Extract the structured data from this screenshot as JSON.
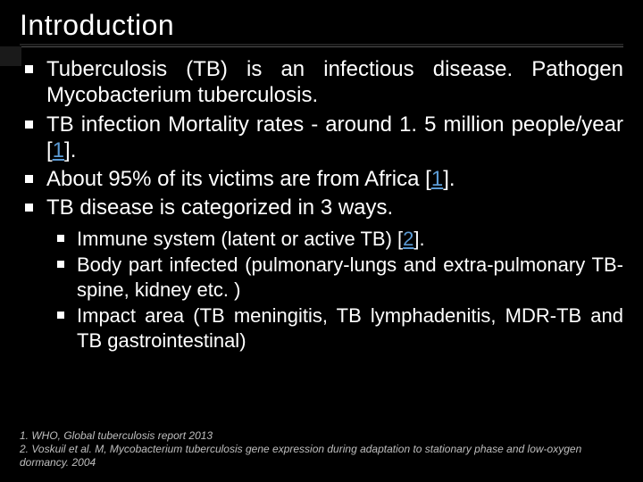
{
  "colors": {
    "background": "#000000",
    "text": "#ffffff",
    "link": "#5b9bd5",
    "footnote": "#bfbfbf",
    "bullet": "#ffffff"
  },
  "typography": {
    "title_fontsize": 32,
    "bullet_fontsize": 24,
    "sub_bullet_fontsize": 22,
    "footnote_fontsize": 12,
    "font_family": "Arial"
  },
  "title": "Introduction",
  "bullets": [
    {
      "pre": "Tuberculosis (TB) is an infectious disease. Pathogen Mycobacterium tuberculosis.",
      "ref": "",
      "post": ""
    },
    {
      "pre": "TB infection Mortality rates - around 1. 5 million people/year [",
      "ref": "1",
      "post": "]."
    },
    {
      "pre": "About 95% of its victims are from Africa [",
      "ref": "1",
      "post": "]."
    },
    {
      "pre": "TB disease is categorized in 3 ways.",
      "ref": "",
      "post": ""
    }
  ],
  "sub_bullets": [
    {
      "pre": "Immune system (latent or active TB) [",
      "ref": "2",
      "post": "]."
    },
    {
      "pre": "Body part infected (pulmonary-lungs and extra-pulmonary TB-spine, kidney etc. )",
      "ref": "",
      "post": ""
    },
    {
      "pre": "Impact area (TB meningitis, TB lymphadenitis, MDR-TB and TB gastrointestinal)",
      "ref": "",
      "post": ""
    }
  ],
  "footnotes": [
    "1. WHO, Global tuberculosis report 2013",
    "2. Voskuil et al. M, Mycobacterium tuberculosis gene expression during adaptation to stationary phase and low-oxygen dormancy. 2004"
  ]
}
